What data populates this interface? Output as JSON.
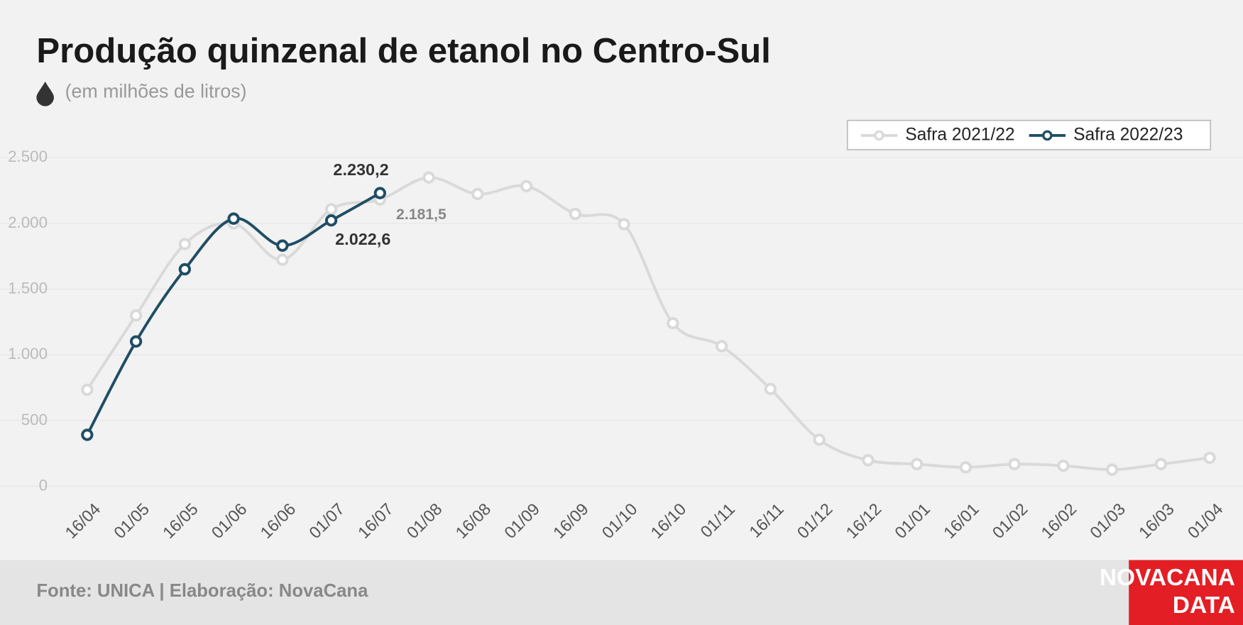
{
  "chart_data": {
    "type": "line",
    "title": "Produção quinzenal de etanol no Centro-Sul",
    "subtitle": "(em milhões de litros)",
    "source": "Fonte: UNICA | Elaboração: NovaCana",
    "logo": [
      "NOVACANA",
      "DATA"
    ],
    "categories": [
      "16/04",
      "01/05",
      "16/05",
      "01/06",
      "16/06",
      "01/07",
      "16/07",
      "01/08",
      "16/08",
      "01/09",
      "16/09",
      "01/10",
      "16/10",
      "01/11",
      "16/11",
      "01/12",
      "16/12",
      "01/01",
      "16/01",
      "01/02",
      "16/02",
      "01/03",
      "16/03",
      "01/04"
    ],
    "series": [
      {
        "name": "Safra 2021/22",
        "color": "#d9d9d9",
        "values": [
          735,
          1300,
          1843,
          2000,
          1723,
          2108,
          2181.5,
          2349,
          2223,
          2283,
          2072,
          1994,
          1241,
          1066,
          741,
          355,
          199,
          169,
          145,
          169,
          157,
          127,
          169,
          217
        ],
        "value_labels": [
          null,
          null,
          null,
          null,
          null,
          null,
          "2.181,5",
          null,
          null,
          null,
          null,
          null,
          null,
          null,
          null,
          null,
          null,
          null,
          null,
          null,
          null,
          null,
          null,
          null
        ]
      },
      {
        "name": "Safra 2022/23",
        "color": "#1f4e66",
        "values": [
          392,
          1102,
          1651,
          2036,
          1831,
          2022.6,
          2230.2,
          null,
          null,
          null,
          null,
          null,
          null,
          null,
          null,
          null,
          null,
          null,
          null,
          null,
          null,
          null,
          null,
          null
        ],
        "value_labels": [
          null,
          null,
          null,
          null,
          null,
          "2.022,6",
          "2.230,2",
          null,
          null,
          null,
          null,
          null,
          null,
          null,
          null,
          null,
          null,
          null,
          null,
          null,
          null,
          null,
          null,
          null
        ]
      }
    ],
    "ylim": [
      0,
      2500
    ],
    "yticks": [
      0,
      500,
      {
        "value": 1000,
        "label": "1.000"
      },
      {
        "value": 1500,
        "label": "1.500"
      },
      {
        "value": 2000,
        "label": "2.000"
      },
      {
        "value": 2500,
        "label": "2.500"
      }
    ],
    "grid": true,
    "legend": "top-right"
  }
}
